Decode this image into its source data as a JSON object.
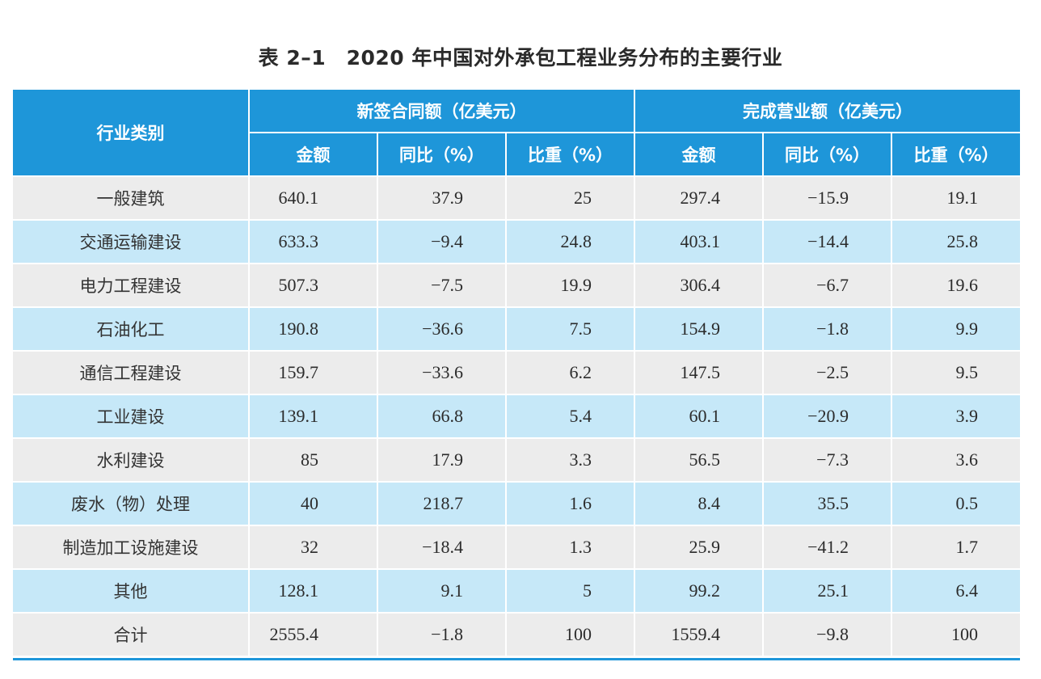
{
  "title": "表 2–1　2020 年中国对外承包工程业务分布的主要行业",
  "header": {
    "category": "行业类别",
    "group_new": "新签合同额（亿美元）",
    "group_done": "完成营业额（亿美元）",
    "sub": [
      "金额",
      "同比（%）",
      "比重（%）",
      "金额",
      "同比（%）",
      "比重（%）"
    ]
  },
  "rows": [
    {
      "category": "一般建筑",
      "values": [
        "640.1",
        "37.9",
        "25",
        "297.4",
        "−15.9",
        "19.1"
      ]
    },
    {
      "category": "交通运输建设",
      "values": [
        "633.3",
        "−9.4",
        "24.8",
        "403.1",
        "−14.4",
        "25.8"
      ]
    },
    {
      "category": "电力工程建设",
      "values": [
        "507.3",
        "−7.5",
        "19.9",
        "306.4",
        "−6.7",
        "19.6"
      ]
    },
    {
      "category": "石油化工",
      "values": [
        "190.8",
        "−36.6",
        "7.5",
        "154.9",
        "−1.8",
        "9.9"
      ]
    },
    {
      "category": "通信工程建设",
      "values": [
        "159.7",
        "−33.6",
        "6.2",
        "147.5",
        "−2.5",
        "9.5"
      ]
    },
    {
      "category": "工业建设",
      "values": [
        "139.1",
        "66.8",
        "5.4",
        "60.1",
        "−20.9",
        "3.9"
      ]
    },
    {
      "category": "水利建设",
      "values": [
        "85",
        "17.9",
        "3.3",
        "56.5",
        "−7.3",
        "3.6"
      ]
    },
    {
      "category": "废水（物）处理",
      "values": [
        "40",
        "218.7",
        "1.6",
        "8.4",
        "35.5",
        "0.5"
      ]
    },
    {
      "category": "制造加工设施建设",
      "values": [
        "32",
        "−18.4",
        "1.3",
        "25.9",
        "−41.2",
        "1.7"
      ]
    },
    {
      "category": "其他",
      "values": [
        "128.1",
        "9.1",
        "5",
        "99.2",
        "25.1",
        "6.4"
      ]
    },
    {
      "category": "合计",
      "values": [
        "2555.4",
        "−1.8",
        "100",
        "1559.4",
        "−9.8",
        "100"
      ]
    }
  ],
  "colors": {
    "header_bg": "#1e96d9",
    "row_gray": "#ececec",
    "row_blue": "#c6e8f8"
  }
}
